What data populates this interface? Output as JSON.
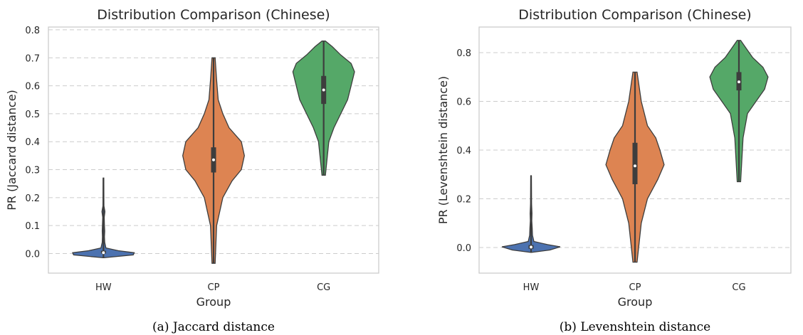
{
  "chart_data": [
    {
      "type": "violin",
      "title": "Distribution Comparison (Chinese)",
      "xlabel": "Group",
      "ylabel": "PR (Jaccard distance)",
      "caption": "(a) Jaccard distance",
      "categories": [
        "HW",
        "CP",
        "CG"
      ],
      "ylim": [
        -0.07,
        0.81
      ],
      "yticks": [
        0.0,
        0.1,
        0.2,
        0.3,
        0.4,
        0.5,
        0.6,
        0.7,
        0.8
      ],
      "ytick_labels": [
        "0.0",
        "0.1",
        "0.2",
        "0.3",
        "0.4",
        "0.5",
        "0.6",
        "0.7",
        "0.8"
      ],
      "grid": "horizontal dashed",
      "series": [
        {
          "category": "HW",
          "color": "#4c72b0",
          "min": -0.015,
          "max": 0.27,
          "q1": 0.0,
          "q3": 0.01,
          "median": 0.003,
          "profile": [
            [
              -0.015,
              0.6
            ],
            [
              -0.005,
              60
            ],
            [
              0.003,
              62
            ],
            [
              0.01,
              30
            ],
            [
              0.02,
              5
            ],
            [
              0.04,
              2.5
            ],
            [
              0.06,
              2
            ],
            [
              0.08,
              2.5
            ],
            [
              0.1,
              2
            ],
            [
              0.13,
              1.5
            ],
            [
              0.15,
              3
            ],
            [
              0.17,
              1
            ],
            [
              0.27,
              0.6
            ]
          ]
        },
        {
          "category": "CP",
          "color": "#dd8452",
          "min": -0.035,
          "max": 0.7,
          "q1": 0.29,
          "q3": 0.38,
          "median": 0.335,
          "profile": [
            [
              -0.035,
              0.5
            ],
            [
              0.1,
              1
            ],
            [
              0.2,
              3
            ],
            [
              0.26,
              6
            ],
            [
              0.3,
              9
            ],
            [
              0.35,
              10
            ],
            [
              0.4,
              9
            ],
            [
              0.45,
              5
            ],
            [
              0.5,
              3
            ],
            [
              0.55,
              1.5
            ],
            [
              0.62,
              1
            ],
            [
              0.7,
              0.5
            ]
          ]
        },
        {
          "category": "CG",
          "color": "#55a868",
          "min": 0.28,
          "max": 0.76,
          "q1": 0.535,
          "q3": 0.635,
          "median": 0.585,
          "profile": [
            [
              0.28,
              0.5
            ],
            [
              0.4,
              1.5
            ],
            [
              0.45,
              3
            ],
            [
              0.5,
              5
            ],
            [
              0.55,
              7
            ],
            [
              0.6,
              8
            ],
            [
              0.65,
              9
            ],
            [
              0.68,
              8
            ],
            [
              0.71,
              5
            ],
            [
              0.74,
              2.5
            ],
            [
              0.76,
              0.5
            ]
          ]
        }
      ]
    },
    {
      "type": "violin",
      "title": "Distribution Comparison (Chinese)",
      "xlabel": "Group",
      "ylabel": "PR (Levenshtein distance)",
      "caption": "(b) Levenshtein distance",
      "categories": [
        "HW",
        "CP",
        "CG"
      ],
      "ylim": [
        -0.105,
        0.905
      ],
      "yticks": [
        0.0,
        0.2,
        0.4,
        0.6,
        0.8
      ],
      "ytick_labels": [
        "0.0",
        "0.2",
        "0.4",
        "0.6",
        "0.8"
      ],
      "grid": "horizontal dashed",
      "series": [
        {
          "category": "HW",
          "color": "#4c72b0",
          "min": -0.02,
          "max": 0.295,
          "q1": -0.005,
          "q3": 0.01,
          "median": 0.002,
          "profile": [
            [
              -0.02,
              0.6
            ],
            [
              -0.01,
              40
            ],
            [
              0.003,
              62
            ],
            [
              0.012,
              35
            ],
            [
              0.025,
              6
            ],
            [
              0.05,
              3
            ],
            [
              0.08,
              2.5
            ],
            [
              0.11,
              1.5
            ],
            [
              0.14,
              2
            ],
            [
              0.18,
              1
            ],
            [
              0.295,
              0.6
            ]
          ]
        },
        {
          "category": "CP",
          "color": "#dd8452",
          "min": -0.06,
          "max": 0.72,
          "q1": 0.26,
          "q3": 0.43,
          "median": 0.335,
          "profile": [
            [
              -0.06,
              0.5
            ],
            [
              0.1,
              1.5
            ],
            [
              0.2,
              3
            ],
            [
              0.28,
              5.5
            ],
            [
              0.34,
              7
            ],
            [
              0.4,
              6
            ],
            [
              0.45,
              5
            ],
            [
              0.5,
              3
            ],
            [
              0.6,
              1.5
            ],
            [
              0.72,
              0.5
            ]
          ]
        },
        {
          "category": "CG",
          "color": "#55a868",
          "min": 0.27,
          "max": 0.85,
          "q1": 0.645,
          "q3": 0.72,
          "median": 0.68,
          "profile": [
            [
              0.27,
              0.5
            ],
            [
              0.45,
              1.2
            ],
            [
              0.55,
              2.5
            ],
            [
              0.6,
              5
            ],
            [
              0.65,
              7.5
            ],
            [
              0.7,
              8.5
            ],
            [
              0.74,
              7
            ],
            [
              0.78,
              4
            ],
            [
              0.82,
              2
            ],
            [
              0.85,
              0.5
            ]
          ]
        }
      ]
    }
  ]
}
